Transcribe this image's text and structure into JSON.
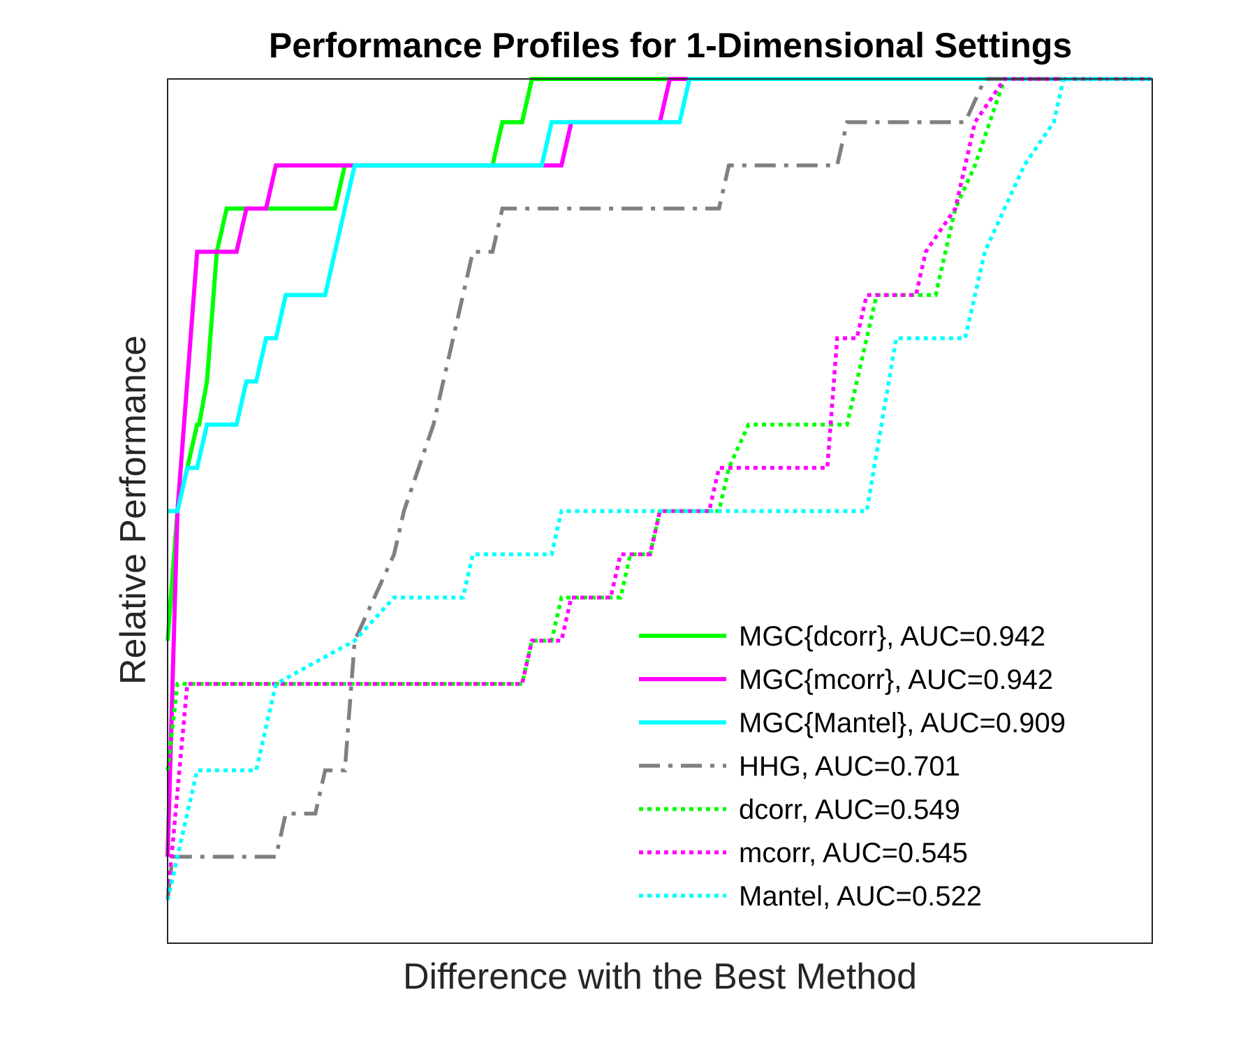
{
  "chart_data": {
    "type": "line",
    "title": "Performance Profiles for 1-Dimensional Settings",
    "xlabel": "Difference with the Best Method",
    "ylabel": "Relative Performance",
    "xlim": [
      0,
      1
    ],
    "ylim": [
      0,
      1
    ],
    "grid": false,
    "ticks_visible": false,
    "legend_position": "bottom-right",
    "series": [
      {
        "name": "MGC{dcorr}, AUC=0.942",
        "color": "#00ff00",
        "style": "solid",
        "x": [
          0,
          0.01,
          0.02,
          0.03,
          0.032,
          0.04,
          0.05,
          0.06,
          0.11,
          0.17,
          0.18,
          0.33,
          0.34,
          0.36,
          0.37,
          1.0
        ],
        "y": [
          0.35,
          0.5,
          0.55,
          0.6,
          0.6,
          0.65,
          0.8,
          0.85,
          0.85,
          0.85,
          0.9,
          0.9,
          0.95,
          0.95,
          1.0,
          1.0
        ]
      },
      {
        "name": "MGC{mcorr}, AUC=0.942",
        "color": "#ff00ff",
        "style": "solid",
        "x": [
          0,
          0.01,
          0.03,
          0.07,
          0.08,
          0.1,
          0.11,
          0.4,
          0.41,
          0.5,
          0.51,
          1.0
        ],
        "y": [
          0.1,
          0.5,
          0.8,
          0.8,
          0.85,
          0.85,
          0.9,
          0.9,
          0.95,
          0.95,
          1.0,
          1.0
        ]
      },
      {
        "name": "MGC{Mantel}, AUC=0.909",
        "color": "#00ffff",
        "style": "solid",
        "x": [
          0,
          0.01,
          0.02,
          0.03,
          0.04,
          0.07,
          0.08,
          0.09,
          0.1,
          0.11,
          0.12,
          0.16,
          0.17,
          0.18,
          0.19,
          0.38,
          0.39,
          0.52,
          0.53,
          1.0
        ],
        "y": [
          0.5,
          0.5,
          0.55,
          0.55,
          0.6,
          0.6,
          0.65,
          0.65,
          0.7,
          0.7,
          0.75,
          0.75,
          0.8,
          0.85,
          0.9,
          0.9,
          0.95,
          0.95,
          1.0,
          1.0
        ]
      },
      {
        "name": "HHG, AUC=0.701",
        "color": "#808080",
        "style": "dashdot",
        "x": [
          0,
          0.005,
          0.11,
          0.12,
          0.15,
          0.16,
          0.18,
          0.19,
          0.23,
          0.24,
          0.27,
          0.28,
          0.3,
          0.31,
          0.33,
          0.34,
          0.37,
          0.38,
          0.56,
          0.57,
          0.68,
          0.69,
          0.81,
          0.83,
          1.0
        ],
        "y": [
          0.05,
          0.1,
          0.1,
          0.15,
          0.15,
          0.2,
          0.2,
          0.35,
          0.45,
          0.5,
          0.6,
          0.65,
          0.75,
          0.8,
          0.8,
          0.85,
          0.85,
          0.85,
          0.85,
          0.9,
          0.9,
          0.95,
          0.95,
          1.0,
          1.0
        ]
      },
      {
        "name": "dcorr, AUC=0.549",
        "color": "#00ff00",
        "style": "dotted",
        "x": [
          0,
          0.01,
          0.36,
          0.37,
          0.39,
          0.4,
          0.46,
          0.47,
          0.49,
          0.5,
          0.56,
          0.57,
          0.59,
          0.6,
          0.69,
          0.7,
          0.72,
          0.73,
          0.78,
          0.8,
          0.82,
          0.85,
          1.0
        ],
        "y": [
          0.2,
          0.3,
          0.3,
          0.35,
          0.35,
          0.4,
          0.4,
          0.45,
          0.45,
          0.5,
          0.5,
          0.55,
          0.6,
          0.6,
          0.6,
          0.65,
          0.75,
          0.75,
          0.75,
          0.85,
          0.9,
          1.0,
          1.0
        ]
      },
      {
        "name": "mcorr, AUC=0.545",
        "color": "#ff00ff",
        "style": "dotted",
        "x": [
          0,
          0.02,
          0.36,
          0.37,
          0.4,
          0.41,
          0.45,
          0.46,
          0.49,
          0.5,
          0.55,
          0.56,
          0.67,
          0.68,
          0.7,
          0.71,
          0.76,
          0.77,
          0.8,
          0.82,
          0.85,
          1.0
        ],
        "y": [
          0.05,
          0.3,
          0.3,
          0.35,
          0.35,
          0.4,
          0.4,
          0.45,
          0.45,
          0.5,
          0.5,
          0.55,
          0.55,
          0.7,
          0.7,
          0.75,
          0.75,
          0.8,
          0.85,
          0.95,
          1.0,
          1.0
        ]
      },
      {
        "name": "Mantel, AUC=0.522",
        "color": "#00ffff",
        "style": "dotted",
        "x": [
          0,
          0.03,
          0.09,
          0.11,
          0.19,
          0.23,
          0.3,
          0.31,
          0.39,
          0.4,
          0.44,
          0.45,
          0.71,
          0.74,
          0.81,
          0.83,
          0.85,
          0.87,
          0.9,
          0.91,
          0.95,
          1.0
        ],
        "y": [
          0.05,
          0.2,
          0.2,
          0.3,
          0.35,
          0.4,
          0.4,
          0.45,
          0.45,
          0.5,
          0.5,
          0.5,
          0.5,
          0.7,
          0.7,
          0.8,
          0.85,
          0.9,
          0.95,
          1.0,
          1.0,
          1.0
        ]
      }
    ]
  }
}
